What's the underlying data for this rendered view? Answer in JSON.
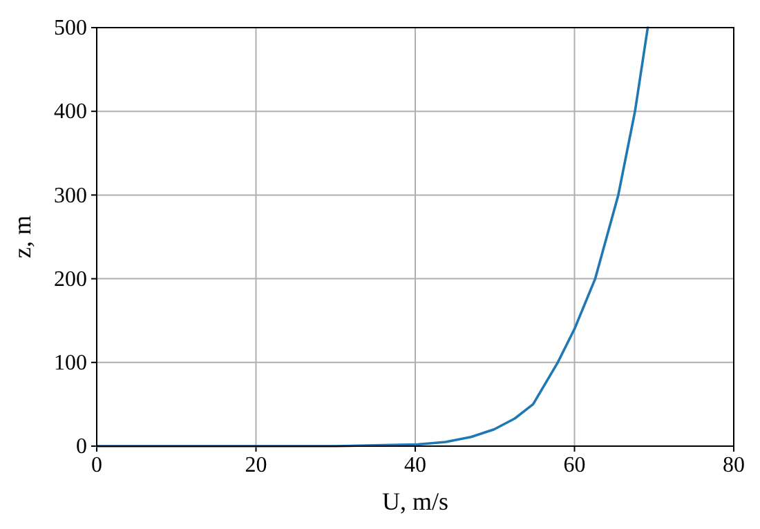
{
  "chart_data": {
    "type": "line",
    "xlabel": "U, m/s",
    "ylabel": "z, m",
    "x": [
      0,
      10,
      20,
      30,
      35,
      40.3,
      43.8,
      47,
      49.9,
      52.5,
      54.8,
      57.9,
      60,
      62.6,
      65.5,
      67.6,
      69.2
    ],
    "series": [
      {
        "color": "#1f77b4",
        "values": [
          0,
          0,
          0,
          0,
          1,
          2,
          5,
          11,
          20,
          33,
          50,
          100,
          140,
          200,
          300,
          400,
          500
        ]
      }
    ],
    "xlim": [
      0,
      80
    ],
    "ylim": [
      0,
      500
    ],
    "xticks": [
      0,
      20,
      40,
      60,
      80
    ],
    "yticks": [
      0,
      100,
      200,
      300,
      400,
      500
    ],
    "grid": true
  }
}
